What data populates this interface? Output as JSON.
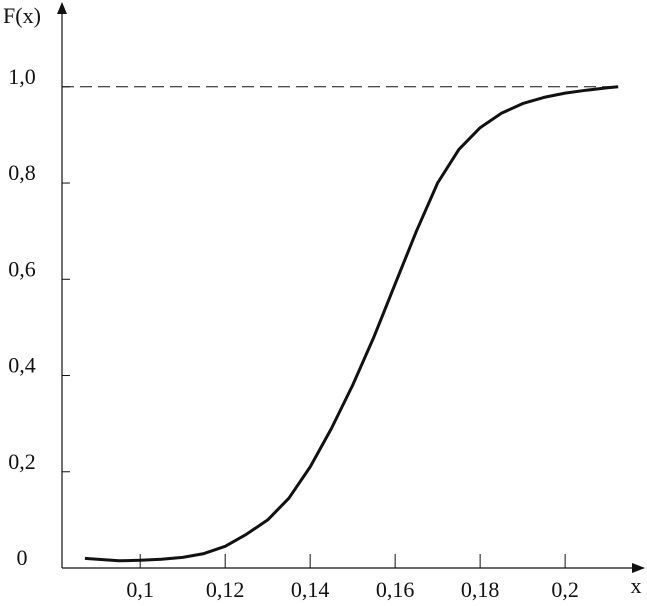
{
  "chart_data": {
    "type": "line",
    "y_label": "F(x)",
    "x_label": "x",
    "x": [
      0.087,
      0.095,
      0.1,
      0.105,
      0.11,
      0.115,
      0.12,
      0.125,
      0.13,
      0.135,
      0.14,
      0.145,
      0.15,
      0.155,
      0.16,
      0.165,
      0.17,
      0.175,
      0.18,
      0.185,
      0.19,
      0.195,
      0.2,
      0.205,
      0.21,
      0.2125
    ],
    "series": [
      {
        "color": "#111111",
        "values": [
          0.02,
          0.015,
          0.016,
          0.018,
          0.022,
          0.03,
          0.045,
          0.07,
          0.1,
          0.145,
          0.21,
          0.29,
          0.38,
          0.48,
          0.59,
          0.7,
          0.8,
          0.87,
          0.915,
          0.945,
          0.965,
          0.978,
          0.987,
          0.993,
          0.998,
          1.0
        ]
      }
    ],
    "xlim": [
      0.0816,
      0.2188
    ],
    "ylim": [
      0,
      1.17
    ],
    "xticks": [
      {
        "value": 0.1,
        "label": "0,1"
      },
      {
        "value": 0.12,
        "label": "0,12"
      },
      {
        "value": 0.14,
        "label": "0,14"
      },
      {
        "value": 0.16,
        "label": "0,16"
      },
      {
        "value": 0.18,
        "label": "0,18"
      },
      {
        "value": 0.2,
        "label": "0,2"
      }
    ],
    "yticks": [
      0,
      {
        "value": 0.2,
        "label": "0,2"
      },
      {
        "value": 0.4,
        "label": "0,4"
      },
      {
        "value": 0.6,
        "label": "0,6"
      },
      {
        "value": 0.8,
        "label": "0,8"
      },
      {
        "value": 1.0,
        "label": "1,0"
      }
    ],
    "reference_line": {
      "value": 1.0,
      "style": "dashed"
    }
  }
}
